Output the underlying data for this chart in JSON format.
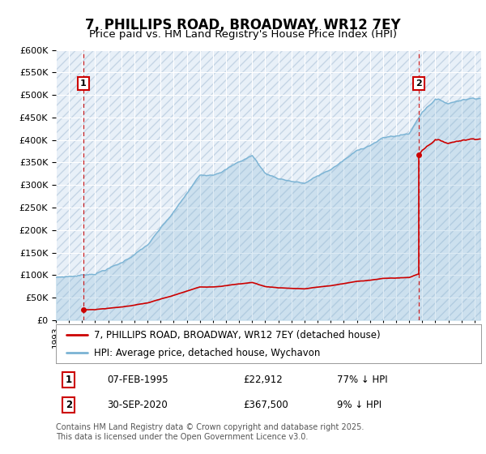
{
  "title": "7, PHILLIPS ROAD, BROADWAY, WR12 7EY",
  "subtitle": "Price paid vs. HM Land Registry's House Price Index (HPI)",
  "ylim": [
    0,
    600000
  ],
  "yticks": [
    0,
    50000,
    100000,
    150000,
    200000,
    250000,
    300000,
    350000,
    400000,
    450000,
    500000,
    550000,
    600000
  ],
  "xlim_start": 1993.08,
  "xlim_end": 2025.5,
  "background_color": "#ffffff",
  "plot_bg_color": "#e8f0f8",
  "grid_color": "#ffffff",
  "hpi_line_color": "#7ab3d4",
  "price_line_color": "#cc0000",
  "vline_color": "#cc0000",
  "legend_label_price": "7, PHILLIPS ROAD, BROADWAY, WR12 7EY (detached house)",
  "legend_label_hpi": "HPI: Average price, detached house, Wychavon",
  "transaction1_date": "07-FEB-1995",
  "transaction1_price": 22912,
  "transaction1_hpi_text": "77% ↓ HPI",
  "transaction1_year": 1995.1,
  "transaction2_date": "30-SEP-2020",
  "transaction2_price": 367500,
  "transaction2_hpi_text": "9% ↓ HPI",
  "transaction2_year": 2020.75,
  "footnote": "Contains HM Land Registry data © Crown copyright and database right 2025.\nThis data is licensed under the Open Government Licence v3.0.",
  "title_fontsize": 12,
  "subtitle_fontsize": 9.5,
  "tick_fontsize": 8,
  "legend_fontsize": 8.5,
  "footnote_fontsize": 7
}
